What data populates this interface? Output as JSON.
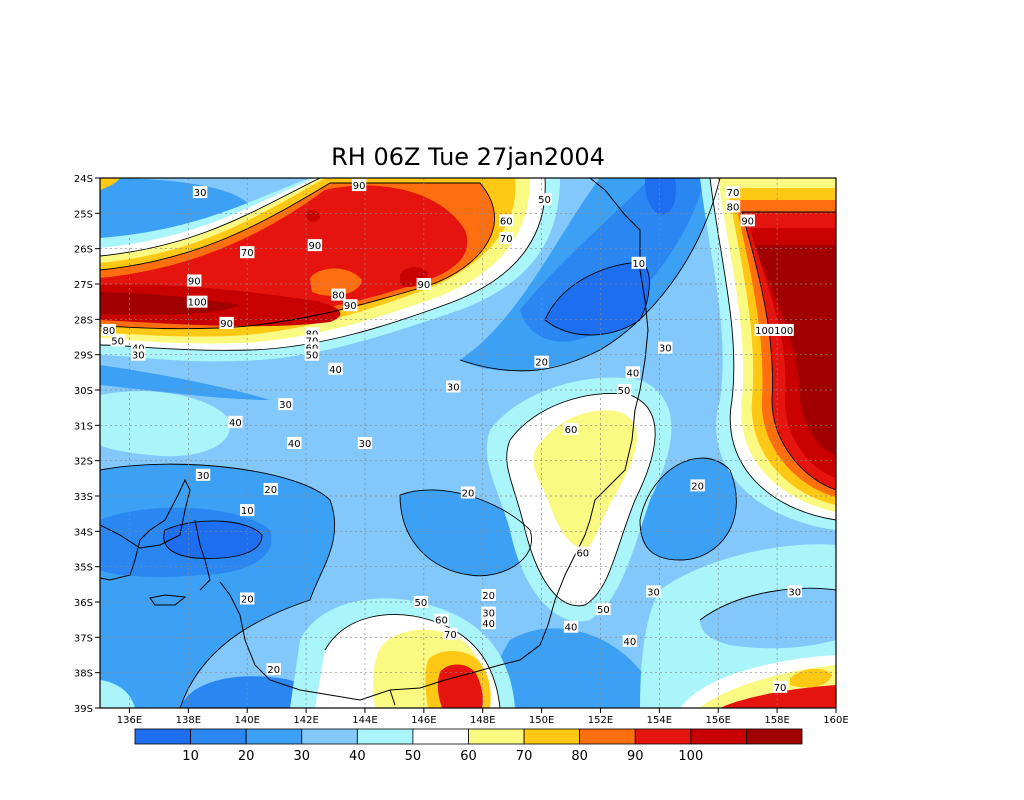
{
  "chart_data": {
    "type": "heatmap",
    "title": "RH 06Z Tue 27jan2004",
    "x_ticks": [
      "136E",
      "138E",
      "140E",
      "142E",
      "144E",
      "146E",
      "148E",
      "150E",
      "152E",
      "154E",
      "156E",
      "158E",
      "160E"
    ],
    "y_ticks": [
      "24S",
      "25S",
      "26S",
      "27S",
      "28S",
      "29S",
      "30S",
      "31S",
      "32S",
      "33S",
      "34S",
      "35S",
      "36S",
      "37S",
      "38S",
      "39S"
    ],
    "xlim": [
      135,
      160
    ],
    "ylim": [
      -39,
      -24
    ],
    "grid": true,
    "colorbar": {
      "labels": [
        "10",
        "20",
        "30",
        "40",
        "50",
        "60",
        "70",
        "80",
        "90",
        "100"
      ],
      "colors": [
        "#1e6ef0",
        "#2a87f2",
        "#3ca0f5",
        "#82c8fa",
        "#aaf5fa",
        "#ffffff",
        "#fafa82",
        "#ffc814",
        "#ff6e0f",
        "#e6140f",
        "#c80000",
        "#a00000"
      ]
    },
    "regions": [
      {
        "value": 100,
        "color": "#a00000",
        "lon": 137.5,
        "lat": -27.7,
        "rx": 3.0,
        "ry": 0.45
      },
      {
        "value": 100,
        "color": "#a00000",
        "lon": 158.7,
        "lat": -28.6,
        "rx": 1.2,
        "ry": 2.5
      },
      {
        "value": 90,
        "color": "#e6140f",
        "lon": 143.0,
        "lat": -25.5,
        "rx": 3.2,
        "ry": 1.4
      },
      {
        "value": 60,
        "color": "#fafa82",
        "lon": 151.2,
        "lat": -32.5,
        "rx": 1.3,
        "ry": 2.2
      },
      {
        "value": 10,
        "color": "#1e6ef0",
        "lon": 152.5,
        "lat": -27.8,
        "rx": 2.2,
        "ry": 1.0
      },
      {
        "value": 10,
        "color": "#1e6ef0",
        "lon": 138.8,
        "lat": -34.2,
        "rx": 2.0,
        "ry": 0.8
      },
      {
        "value": 70,
        "color": "#fafa82",
        "lon": 147.8,
        "lat": -37.8,
        "rx": 1.6,
        "ry": 1.0
      },
      {
        "value": 90,
        "color": "#e6140f",
        "lon": 148.0,
        "lat": -38.3,
        "rx": 0.9,
        "ry": 0.9
      },
      {
        "value": 70,
        "color": "#fafa82",
        "lon": 157.6,
        "lat": -38.2,
        "rx": 1.8,
        "ry": 0.6
      }
    ],
    "contour_labels": [
      {
        "text": "30",
        "lon": 138.4,
        "lat": -24.4
      },
      {
        "text": "90",
        "lon": 143.8,
        "lat": -24.2
      },
      {
        "text": "50",
        "lon": 150.1,
        "lat": -24.6
      },
      {
        "text": "70",
        "lon": 156.5,
        "lat": -24.4
      },
      {
        "text": "80",
        "lon": 156.5,
        "lat": -24.8
      },
      {
        "text": "60",
        "lon": 148.8,
        "lat": -25.2
      },
      {
        "text": "70",
        "lon": 148.8,
        "lat": -25.7
      },
      {
        "text": "90",
        "lon": 157.0,
        "lat": -25.2
      },
      {
        "text": "70",
        "lon": 140.0,
        "lat": -26.1
      },
      {
        "text": "90",
        "lon": 142.3,
        "lat": -25.9
      },
      {
        "text": "10",
        "lon": 153.3,
        "lat": -26.4
      },
      {
        "text": "90",
        "lon": 138.2,
        "lat": -26.9
      },
      {
        "text": "80",
        "lon": 143.1,
        "lat": -27.3
      },
      {
        "text": "90",
        "lon": 143.5,
        "lat": -27.6
      },
      {
        "text": "90",
        "lon": 146.0,
        "lat": -27.0
      },
      {
        "text": "100",
        "lon": 138.3,
        "lat": -27.5
      },
      {
        "text": "90",
        "lon": 139.3,
        "lat": -28.1
      },
      {
        "text": "80",
        "lon": 135.3,
        "lat": -28.3
      },
      {
        "text": "80",
        "lon": 142.2,
        "lat": -28.4
      },
      {
        "text": "100100",
        "lon": 157.9,
        "lat": -28.3
      },
      {
        "text": "50",
        "lon": 135.6,
        "lat": -28.6
      },
      {
        "text": "40",
        "lon": 136.3,
        "lat": -28.8
      },
      {
        "text": "70",
        "lon": 142.2,
        "lat": -28.6
      },
      {
        "text": "60",
        "lon": 142.2,
        "lat": -28.8
      },
      {
        "text": "30",
        "lon": 136.3,
        "lat": -29.0
      },
      {
        "text": "50",
        "lon": 142.2,
        "lat": -29.0
      },
      {
        "text": "40",
        "lon": 143.0,
        "lat": -29.4
      },
      {
        "text": "20",
        "lon": 150.0,
        "lat": -29.2
      },
      {
        "text": "30",
        "lon": 154.2,
        "lat": -28.8
      },
      {
        "text": "40",
        "lon": 153.1,
        "lat": -29.5
      },
      {
        "text": "50",
        "lon": 152.8,
        "lat": -30.0
      },
      {
        "text": "30",
        "lon": 147.0,
        "lat": -29.9
      },
      {
        "text": "30",
        "lon": 141.3,
        "lat": -30.4
      },
      {
        "text": "40",
        "lon": 139.6,
        "lat": -30.9
      },
      {
        "text": "60",
        "lon": 151.0,
        "lat": -31.1
      },
      {
        "text": "40",
        "lon": 141.6,
        "lat": -31.5
      },
      {
        "text": "30",
        "lon": 144.0,
        "lat": -31.5
      },
      {
        "text": "30",
        "lon": 138.5,
        "lat": -32.4
      },
      {
        "text": "20",
        "lon": 155.3,
        "lat": -32.7
      },
      {
        "text": "20",
        "lon": 140.8,
        "lat": -32.8
      },
      {
        "text": "20",
        "lon": 147.5,
        "lat": -32.9
      },
      {
        "text": "10",
        "lon": 140.0,
        "lat": -33.4
      },
      {
        "text": "60",
        "lon": 151.4,
        "lat": -34.6
      },
      {
        "text": "20",
        "lon": 148.2,
        "lat": -35.8
      },
      {
        "text": "30",
        "lon": 153.8,
        "lat": -35.7
      },
      {
        "text": "30",
        "lon": 158.6,
        "lat": -35.7
      },
      {
        "text": "20",
        "lon": 140.0,
        "lat": -35.9
      },
      {
        "text": "50",
        "lon": 145.9,
        "lat": -36.0
      },
      {
        "text": "30",
        "lon": 148.2,
        "lat": -36.3
      },
      {
        "text": "50",
        "lon": 152.1,
        "lat": -36.2
      },
      {
        "text": "60",
        "lon": 146.6,
        "lat": -36.5
      },
      {
        "text": "40",
        "lon": 148.2,
        "lat": -36.6
      },
      {
        "text": "40",
        "lon": 151.0,
        "lat": -36.7
      },
      {
        "text": "70",
        "lon": 146.9,
        "lat": -36.9
      },
      {
        "text": "40",
        "lon": 153.0,
        "lat": -37.1
      },
      {
        "text": "20",
        "lon": 140.9,
        "lat": -37.9
      },
      {
        "text": "70",
        "lon": 158.1,
        "lat": -38.4
      }
    ]
  }
}
